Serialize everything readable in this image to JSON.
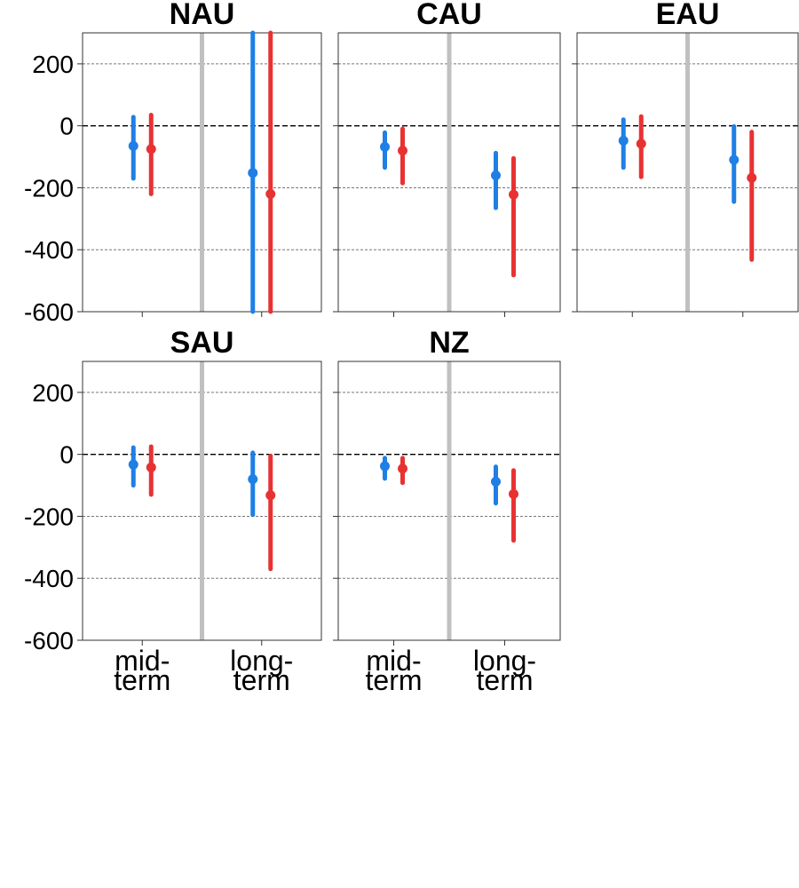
{
  "colors": {
    "series_1": "#1f7fe5",
    "series_2": "#e83232",
    "gridline": "#777777",
    "zero_line": "#000000",
    "divider": "#c0c0c0",
    "panel_border": "#333333"
  },
  "chart_data": {
    "type": "errorbar-panels",
    "ylim": [
      -600,
      300
    ],
    "yticks": [
      200,
      0,
      -200,
      -400,
      -600
    ],
    "ytick_labels": [
      "200",
      "0",
      "-200",
      "-400",
      "-600"
    ],
    "categories": [
      "mid-term",
      "long-term"
    ],
    "category_labels": [
      [
        "mid-",
        "term"
      ],
      [
        "long-",
        "term"
      ]
    ],
    "grid": "horizontal dashed",
    "zero_line": "dashed black",
    "series": [
      {
        "color_key": "series_1"
      },
      {
        "color_key": "series_2"
      }
    ],
    "panels": [
      {
        "title": "NAU",
        "values": [
          [
            {
              "y": -65,
              "low": -170,
              "high": 28
            },
            {
              "y": -75,
              "low": -220,
              "high": 35
            }
          ],
          [
            {
              "y": -152,
              "low": -600,
              "high": 300
            },
            {
              "y": -220,
              "low": -600,
              "high": 300
            }
          ]
        ]
      },
      {
        "title": "CAU",
        "values": [
          [
            {
              "y": -68,
              "low": -135,
              "high": -22
            },
            {
              "y": -80,
              "low": -185,
              "high": -10
            }
          ],
          [
            {
              "y": -160,
              "low": -265,
              "high": -88
            },
            {
              "y": -222,
              "low": -482,
              "high": -105
            }
          ]
        ]
      },
      {
        "title": "EAU",
        "values": [
          [
            {
              "y": -48,
              "low": -135,
              "high": 20
            },
            {
              "y": -58,
              "low": -165,
              "high": 30
            }
          ],
          [
            {
              "y": -110,
              "low": -245,
              "high": -2
            },
            {
              "y": -168,
              "low": -432,
              "high": -20
            }
          ]
        ]
      },
      {
        "title": "SAU",
        "values": [
          [
            {
              "y": -33,
              "low": -100,
              "high": 22
            },
            {
              "y": -42,
              "low": -130,
              "high": 25
            }
          ],
          [
            {
              "y": -80,
              "low": -195,
              "high": 5
            },
            {
              "y": -132,
              "low": -370,
              "high": -5
            }
          ]
        ]
      },
      {
        "title": "NZ",
        "values": [
          [
            {
              "y": -38,
              "low": -78,
              "high": -12
            },
            {
              "y": -46,
              "low": -92,
              "high": -12
            }
          ],
          [
            {
              "y": -88,
              "low": -158,
              "high": -40
            },
            {
              "y": -128,
              "low": -278,
              "high": -52
            }
          ]
        ]
      }
    ]
  }
}
